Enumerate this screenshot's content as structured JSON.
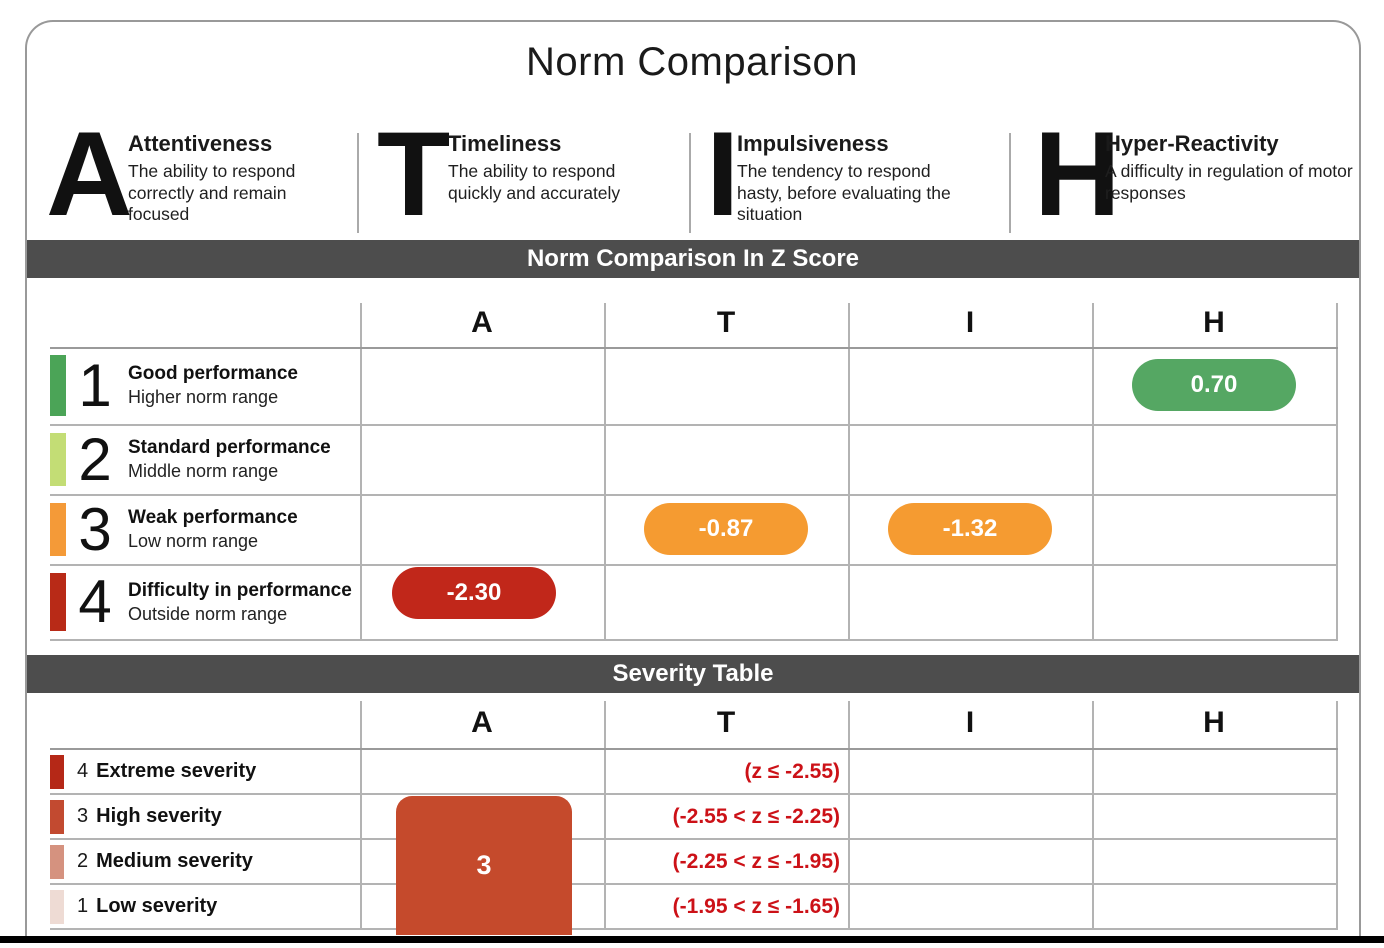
{
  "title": "Norm Comparison",
  "legend": {
    "items": [
      {
        "letter": "A",
        "name": "Attentiveness",
        "description": "The ability to respond correctly and remain focused"
      },
      {
        "letter": "T",
        "name": "Timeliness",
        "description": "The ability to respond quickly and accurately"
      },
      {
        "letter": "I",
        "name": "Impulsiveness",
        "description": "The tendency to respond hasty, before evaluating the situation"
      },
      {
        "letter": "H",
        "name": "Hyper-Reactivity",
        "description": "A difficulty in regulation of motor responses"
      }
    ]
  },
  "z_section": {
    "banner": "Norm Comparison In Z Score",
    "columns": [
      "A",
      "T",
      "I",
      "H"
    ],
    "rows": [
      {
        "level": "1",
        "title": "Good performance",
        "subtitle": "Higher norm range",
        "color": "#4ba457"
      },
      {
        "level": "2",
        "title": "Standard performance",
        "subtitle": "Middle norm range",
        "color": "#c3dd75"
      },
      {
        "level": "3",
        "title": "Weak performance",
        "subtitle": "Low norm range",
        "color": "#f49a38"
      },
      {
        "level": "4",
        "title": "Difficulty in performance",
        "subtitle": "Outside norm range",
        "color": "#b82a17"
      }
    ],
    "scores": [
      {
        "column": "H",
        "row_level": "1",
        "value": "0.70",
        "color": "#55a763"
      },
      {
        "column": "T",
        "row_level": "3",
        "value": "-0.87",
        "color": "#f59b31"
      },
      {
        "column": "I",
        "row_level": "3",
        "value": "-1.32",
        "color": "#f59b31"
      },
      {
        "column": "A",
        "row_level": "4",
        "value": "-2.30",
        "color": "#c1271a"
      }
    ]
  },
  "severity_section": {
    "banner": "Severity Table",
    "columns": [
      "A",
      "T",
      "I",
      "H"
    ],
    "rows": [
      {
        "level": "4",
        "label": "Extreme severity",
        "color": "#b52817",
        "z_range": "(z ≤ -2.55)"
      },
      {
        "level": "3",
        "label": "High severity",
        "color": "#c24a30",
        "z_range": "(-2.55 < z ≤ -2.25)"
      },
      {
        "level": "2",
        "label": "Medium severity",
        "color": "#d5927f",
        "z_range": "(-2.25 < z ≤ -1.95)"
      },
      {
        "level": "1",
        "label": "Low severity",
        "color": "#eedbd4",
        "z_range": "(-1.95 < z ≤ -1.65)"
      }
    ],
    "a_column_block": {
      "value": "3",
      "color": "#c54a2c"
    }
  },
  "colors": {
    "banner_bg": "#4d4d4d",
    "frame_border": "#999999",
    "range_text": "#cc1117",
    "bottom_bar": "#000000"
  }
}
